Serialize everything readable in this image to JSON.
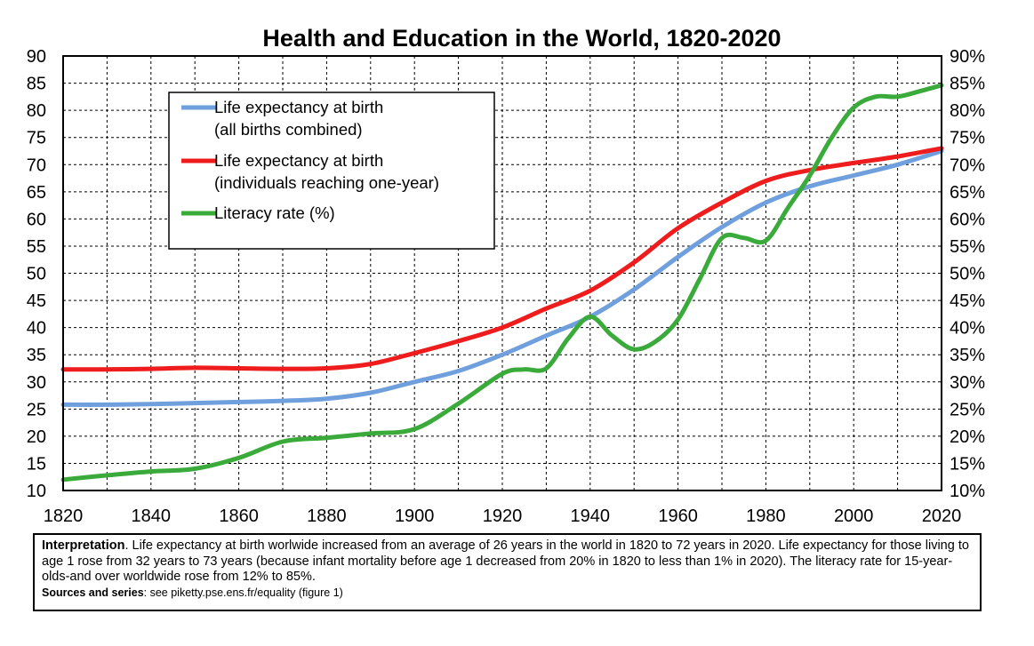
{
  "chart_data": {
    "type": "line",
    "title": "Health and Education in the World, 1820-2020",
    "x_ticks": [
      "1820",
      "1840",
      "1860",
      "1880",
      "1900",
      "1920",
      "1940",
      "1960",
      "1980",
      "2000",
      "2020"
    ],
    "xlim": [
      1820,
      2020
    ],
    "y_left": {
      "ticks": [
        "10",
        "15",
        "20",
        "25",
        "30",
        "35",
        "40",
        "45",
        "50",
        "55",
        "60",
        "65",
        "70",
        "75",
        "80",
        "85",
        "90"
      ],
      "range": [
        10,
        90
      ]
    },
    "y_right": {
      "ticks": [
        "10%",
        "15%",
        "20%",
        "25%",
        "30%",
        "35%",
        "40%",
        "45%",
        "50%",
        "55%",
        "60%",
        "65%",
        "70%",
        "75%",
        "80%",
        "85%",
        "90%"
      ],
      "range": [
        10,
        90
      ],
      "unit": "%"
    },
    "grid": true,
    "legend_position": "top-left",
    "series": [
      {
        "name": "Life expectancy at birth",
        "name_line2": "(all births combined)",
        "color": "#6f9fdc",
        "x": [
          1820,
          1830,
          1840,
          1850,
          1860,
          1870,
          1880,
          1890,
          1900,
          1910,
          1920,
          1930,
          1940,
          1950,
          1960,
          1970,
          1980,
          1990,
          2000,
          2010,
          2020
        ],
        "y": [
          25.8,
          25.8,
          25.9,
          26.1,
          26.3,
          26.5,
          26.9,
          28.0,
          30.0,
          32.0,
          35.0,
          38.5,
          42.0,
          47.0,
          53.0,
          58.5,
          63.0,
          66.0,
          68.0,
          70.0,
          72.5
        ]
      },
      {
        "name": "Life expectancy at birth",
        "name_line2": "(individuals reaching one-year)",
        "color": "#ee1c1c",
        "x": [
          1820,
          1830,
          1840,
          1850,
          1860,
          1870,
          1880,
          1890,
          1900,
          1910,
          1920,
          1930,
          1940,
          1950,
          1960,
          1970,
          1980,
          1990,
          2000,
          2010,
          2020
        ],
        "y": [
          32.3,
          32.3,
          32.4,
          32.6,
          32.5,
          32.4,
          32.5,
          33.3,
          35.3,
          37.5,
          40.0,
          43.5,
          46.8,
          52.0,
          58.3,
          63.0,
          67.0,
          69.0,
          70.3,
          71.5,
          73.0
        ]
      },
      {
        "name": "Literacy rate (%)",
        "name_line2": "",
        "color": "#3aaa3a",
        "x": [
          1820,
          1830,
          1840,
          1850,
          1860,
          1870,
          1880,
          1890,
          1900,
          1910,
          1920,
          1925,
          1930,
          1935,
          1940,
          1945,
          1950,
          1955,
          1960,
          1965,
          1970,
          1975,
          1980,
          1985,
          1990,
          1995,
          2000,
          2005,
          2010,
          2015,
          2020
        ],
        "y": [
          12,
          12.8,
          13.5,
          14,
          16,
          19,
          19.7,
          20.5,
          21.3,
          26,
          31.5,
          32.3,
          32.5,
          38,
          42,
          38.5,
          36,
          37.5,
          41.5,
          49,
          56.5,
          56.5,
          56,
          62,
          68,
          75,
          80.5,
          82.5,
          82.5,
          83.5,
          84.6
        ]
      }
    ]
  },
  "note": {
    "interpretation_label": "Interpretation",
    "interpretation_text": ". Life expectancy at birth worlwide increased from an average of 26 years in the world in 1820 to 72 years in 2020. Life expectancy for those living to age 1 rose from 32 years to 73 years (because infant mortality before age 1 decreased from 20% in 1820 to less than 1% in 2020). The literacy rate for 15-year-olds-and over worldwide rose from 12% to 85%.",
    "sources_label": "Sources and series",
    "sources_text": ": see piketty.pse.ens.fr/equality (figure 1)"
  }
}
